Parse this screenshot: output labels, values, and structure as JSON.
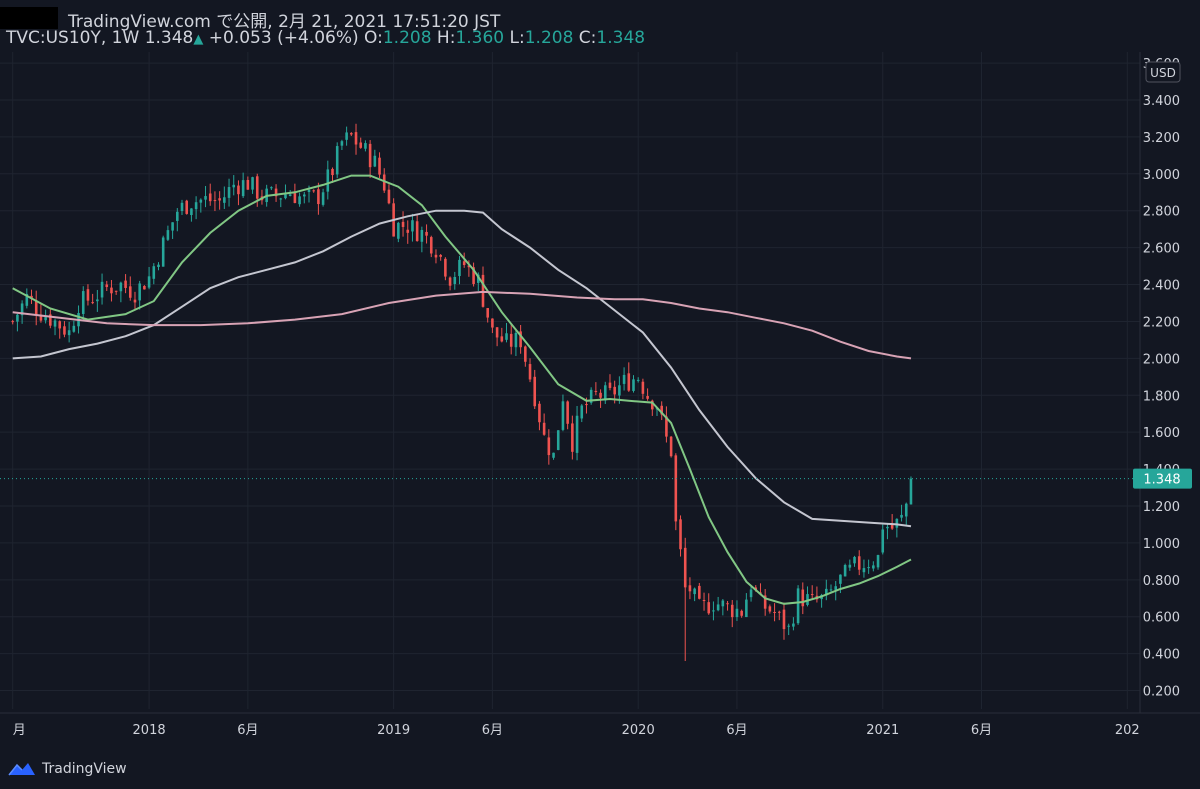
{
  "header": {
    "published": "TradingView.com で公開, 2月 21, 2021 17:51:20 JST",
    "symbol": "TVC:US10Y, 1W",
    "last": "1.348",
    "change": "+0.053 (+4.06%)",
    "o_label": "O:",
    "o_value": "1.208",
    "h_label": "H:",
    "h_value": "1.360",
    "l_label": "L:",
    "l_value": "1.208",
    "c_label": "C:",
    "c_value": "1.348"
  },
  "footer": {
    "brand": "TradingView",
    "icon": "tradingview-logo-icon"
  },
  "colors": {
    "background": "#131722",
    "grid": "#1f2430",
    "up": "#26a69a",
    "down": "#ef5350",
    "ma_fast": "#81c784",
    "ma_mid": "#c4c6d0",
    "ma_slow": "#d8a3b5",
    "price_label": "#26a69a"
  },
  "chart_data": {
    "type": "candlestick",
    "currency_label": "USD",
    "price_label": "1.348",
    "y_ticks": [
      "3.600",
      "3.400",
      "3.200",
      "3.000",
      "2.800",
      "2.600",
      "2.400",
      "2.200",
      "2.000",
      "1.800",
      "1.600",
      "1.400",
      "1.200",
      "1.000",
      "0.800",
      "0.600",
      "0.400",
      "0.200"
    ],
    "ylim": [
      0.1,
      3.66
    ],
    "x_ticks": [
      {
        "label": "月",
        "t": 0
      },
      {
        "label": "2018",
        "t": 29
      },
      {
        "label": "6月",
        "t": 50
      },
      {
        "label": "2019",
        "t": 81
      },
      {
        "label": "6月",
        "t": 102
      },
      {
        "label": "2020",
        "t": 133
      },
      {
        "label": "6月",
        "t": 154
      },
      {
        "label": "2021",
        "t": 185
      },
      {
        "label": "6月",
        "t": 206
      },
      {
        "label": "202",
        "t": 237
      }
    ],
    "x_range": [
      -1,
      238
    ],
    "candle_close_path": [
      [
        0,
        2.2
      ],
      [
        3,
        2.33
      ],
      [
        6,
        2.25
      ],
      [
        9,
        2.2
      ],
      [
        12,
        2.14
      ],
      [
        14,
        2.3
      ],
      [
        17,
        2.33
      ],
      [
        20,
        2.38
      ],
      [
        23,
        2.4
      ],
      [
        26,
        2.36
      ],
      [
        29,
        2.44
      ],
      [
        32,
        2.62
      ],
      [
        35,
        2.8
      ],
      [
        38,
        2.85
      ],
      [
        41,
        2.86
      ],
      [
        44,
        2.85
      ],
      [
        47,
        2.94
      ],
      [
        50,
        2.95
      ],
      [
        53,
        2.88
      ],
      [
        56,
        2.88
      ],
      [
        59,
        2.9
      ],
      [
        62,
        2.86
      ],
      [
        65,
        2.88
      ],
      [
        68,
        3.02
      ],
      [
        70,
        3.17
      ],
      [
        72,
        3.2
      ],
      [
        75,
        3.12
      ],
      [
        77,
        3.06
      ],
      [
        79,
        2.94
      ],
      [
        81,
        2.72
      ],
      [
        84,
        2.72
      ],
      [
        87,
        2.68
      ],
      [
        90,
        2.6
      ],
      [
        93,
        2.44
      ],
      [
        96,
        2.51
      ],
      [
        99,
        2.42
      ],
      [
        102,
        2.14
      ],
      [
        105,
        2.08
      ],
      [
        108,
        2.1
      ],
      [
        111,
        1.8
      ],
      [
        113,
        1.57
      ],
      [
        115,
        1.47
      ],
      [
        117,
        1.8
      ],
      [
        119,
        1.55
      ],
      [
        121,
        1.72
      ],
      [
        124,
        1.8
      ],
      [
        127,
        1.8
      ],
      [
        130,
        1.87
      ],
      [
        133,
        1.9
      ],
      [
        135,
        1.8
      ],
      [
        137,
        1.75
      ],
      [
        139,
        1.56
      ],
      [
        140,
        1.5
      ],
      [
        141,
        1.1
      ],
      [
        142,
        0.94
      ],
      [
        143,
        0.75
      ],
      [
        144,
        0.75
      ],
      [
        146,
        0.64
      ],
      [
        149,
        0.68
      ],
      [
        152,
        0.65
      ],
      [
        155,
        0.63
      ],
      [
        157,
        0.78
      ],
      [
        159,
        0.67
      ],
      [
        162,
        0.62
      ],
      [
        165,
        0.53
      ],
      [
        167,
        0.71
      ],
      [
        170,
        0.68
      ],
      [
        173,
        0.7
      ],
      [
        176,
        0.8
      ],
      [
        179,
        0.87
      ],
      [
        182,
        0.9
      ],
      [
        184,
        0.92
      ],
      [
        185,
        1.1
      ],
      [
        187,
        1.08
      ],
      [
        189,
        1.13
      ],
      [
        190,
        1.21
      ],
      [
        191,
        1.348
      ]
    ],
    "series": [
      {
        "name": "",
        "color": "#81c784",
        "points": [
          [
            0,
            2.38
          ],
          [
            8,
            2.27
          ],
          [
            16,
            2.21
          ],
          [
            24,
            2.24
          ],
          [
            30,
            2.31
          ],
          [
            36,
            2.52
          ],
          [
            42,
            2.68
          ],
          [
            48,
            2.8
          ],
          [
            54,
            2.88
          ],
          [
            60,
            2.9
          ],
          [
            66,
            2.94
          ],
          [
            72,
            2.99
          ],
          [
            76,
            2.99
          ],
          [
            82,
            2.93
          ],
          [
            87,
            2.83
          ],
          [
            92,
            2.66
          ],
          [
            98,
            2.48
          ],
          [
            104,
            2.25
          ],
          [
            110,
            2.06
          ],
          [
            116,
            1.86
          ],
          [
            122,
            1.77
          ],
          [
            127,
            1.78
          ],
          [
            131,
            1.77
          ],
          [
            136,
            1.76
          ],
          [
            140,
            1.65
          ],
          [
            144,
            1.4
          ],
          [
            148,
            1.14
          ],
          [
            152,
            0.95
          ],
          [
            156,
            0.79
          ],
          [
            160,
            0.7
          ],
          [
            164,
            0.67
          ],
          [
            168,
            0.68
          ],
          [
            172,
            0.71
          ],
          [
            176,
            0.75
          ],
          [
            180,
            0.78
          ],
          [
            184,
            0.82
          ],
          [
            188,
            0.87
          ],
          [
            191,
            0.91
          ]
        ]
      },
      {
        "name": "",
        "color": "#c4c6d0",
        "points": [
          [
            0,
            2.0
          ],
          [
            6,
            2.01
          ],
          [
            12,
            2.05
          ],
          [
            18,
            2.08
          ],
          [
            24,
            2.12
          ],
          [
            30,
            2.18
          ],
          [
            36,
            2.28
          ],
          [
            42,
            2.38
          ],
          [
            48,
            2.44
          ],
          [
            54,
            2.48
          ],
          [
            60,
            2.52
          ],
          [
            66,
            2.58
          ],
          [
            72,
            2.66
          ],
          [
            78,
            2.73
          ],
          [
            84,
            2.77
          ],
          [
            90,
            2.8
          ],
          [
            96,
            2.8
          ],
          [
            100,
            2.79
          ],
          [
            104,
            2.7
          ],
          [
            110,
            2.6
          ],
          [
            116,
            2.48
          ],
          [
            122,
            2.38
          ],
          [
            128,
            2.26
          ],
          [
            134,
            2.14
          ],
          [
            140,
            1.95
          ],
          [
            146,
            1.72
          ],
          [
            152,
            1.52
          ],
          [
            158,
            1.35
          ],
          [
            164,
            1.22
          ],
          [
            170,
            1.13
          ],
          [
            176,
            1.12
          ],
          [
            182,
            1.11
          ],
          [
            188,
            1.1
          ],
          [
            191,
            1.09
          ]
        ]
      },
      {
        "name": "",
        "color": "#d8a3b5",
        "points": [
          [
            0,
            2.25
          ],
          [
            10,
            2.22
          ],
          [
            20,
            2.19
          ],
          [
            30,
            2.18
          ],
          [
            40,
            2.18
          ],
          [
            50,
            2.19
          ],
          [
            60,
            2.21
          ],
          [
            70,
            2.24
          ],
          [
            80,
            2.3
          ],
          [
            90,
            2.34
          ],
          [
            100,
            2.36
          ],
          [
            110,
            2.35
          ],
          [
            120,
            2.33
          ],
          [
            128,
            2.32
          ],
          [
            134,
            2.32
          ],
          [
            140,
            2.3
          ],
          [
            146,
            2.27
          ],
          [
            152,
            2.25
          ],
          [
            158,
            2.22
          ],
          [
            164,
            2.19
          ],
          [
            170,
            2.15
          ],
          [
            176,
            2.09
          ],
          [
            182,
            2.04
          ],
          [
            188,
            2.01
          ],
          [
            191,
            2.0
          ]
        ]
      }
    ]
  }
}
